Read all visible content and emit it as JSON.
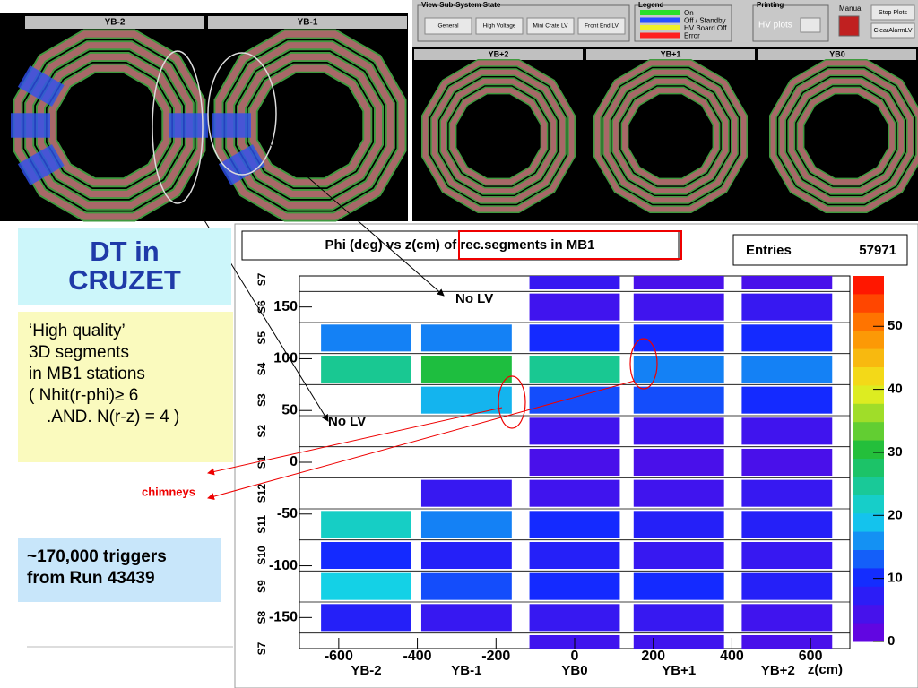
{
  "top_left": {
    "wheels": [
      "YB-2",
      "YB-1"
    ]
  },
  "top_right": {
    "panel_title": "View Sub-System State",
    "buttons": [
      "General",
      "High Voltage",
      "Mini Crate LV",
      "Front End LV"
    ],
    "legend_title": "Legend",
    "legend": [
      {
        "label": "On",
        "color": "#28e028"
      },
      {
        "label": "Off / Standby",
        "color": "#2850ff"
      },
      {
        "label": "HV Board Off",
        "color": "#f0f028"
      },
      {
        "label": "Error",
        "color": "#ff2020"
      }
    ],
    "printing_title": "Printing",
    "hv_plots": "HV plots",
    "manual": "Manual",
    "stop_plots": "Stop Plots",
    "clear_alarm": "ClearAlarmLV",
    "wheels": [
      "YB+2",
      "YB+1",
      "YB0"
    ]
  },
  "slide": {
    "title": "DT in CRUZET",
    "description": [
      "‘High quality’",
      "3D segments",
      "in MB1 stations",
      "( Nhit(r-phi)≥ 6",
      ".AND. N(r-z) = 4 )"
    ],
    "chimneys": "chimneys",
    "triggers": [
      "~170,000 triggers",
      "from Run 43439"
    ]
  },
  "chart_data": {
    "type": "heatmap",
    "title": "Phi (deg) vs z(cm) of rec.segments in MB1",
    "entries_label": "Entries",
    "entries": 57971,
    "x_label": "z(cm)",
    "xlim": [
      -700,
      700
    ],
    "xticks": [
      -600,
      -400,
      -200,
      0,
      200,
      400,
      600
    ],
    "ylim": [
      -180,
      180
    ],
    "yticks": [
      -150,
      -100,
      -50,
      0,
      50,
      100,
      150
    ],
    "zlim": [
      0,
      58
    ],
    "zticks": [
      0,
      10,
      20,
      30,
      40,
      50
    ],
    "wheels": [
      {
        "label": "YB-2",
        "z": -530
      },
      {
        "label": "YB-1",
        "z": -275
      },
      {
        "label": "YB0",
        "z": 0
      },
      {
        "label": "YB+1",
        "z": 265
      },
      {
        "label": "YB+2",
        "z": 540
      }
    ],
    "sectors": [
      {
        "label": "S7",
        "phi": 180
      },
      {
        "label": "S6",
        "phi": 150
      },
      {
        "label": "S5",
        "phi": 120
      },
      {
        "label": "S4",
        "phi": 90
      },
      {
        "label": "S3",
        "phi": 60
      },
      {
        "label": "S2",
        "phi": 30
      },
      {
        "label": "S1",
        "phi": 0
      },
      {
        "label": "S12",
        "phi": -30
      },
      {
        "label": "S11",
        "phi": -60
      },
      {
        "label": "S10",
        "phi": -90
      },
      {
        "label": "S9",
        "phi": -120
      },
      {
        "label": "S8",
        "phi": -150
      },
      {
        "label": "S7",
        "phi": -180
      }
    ],
    "values": [
      [
        null,
        null,
        6,
        4,
        4
      ],
      [
        null,
        null,
        5,
        5,
        6
      ],
      [
        15,
        15,
        10,
        10,
        10
      ],
      [
        25,
        30,
        25,
        15,
        15
      ],
      [
        null,
        18,
        12,
        12,
        10
      ],
      [
        null,
        null,
        5,
        5,
        5
      ],
      [
        null,
        null,
        4,
        4,
        4
      ],
      [
        null,
        6,
        5,
        5,
        6
      ],
      [
        22,
        15,
        10,
        8,
        8
      ],
      [
        10,
        8,
        8,
        6,
        6
      ],
      [
        20,
        12,
        10,
        10,
        8
      ],
      [
        8,
        6,
        6,
        6,
        5
      ],
      [
        null,
        null,
        5,
        5,
        4
      ]
    ],
    "annotations": [
      "No LV",
      "No LV"
    ]
  }
}
